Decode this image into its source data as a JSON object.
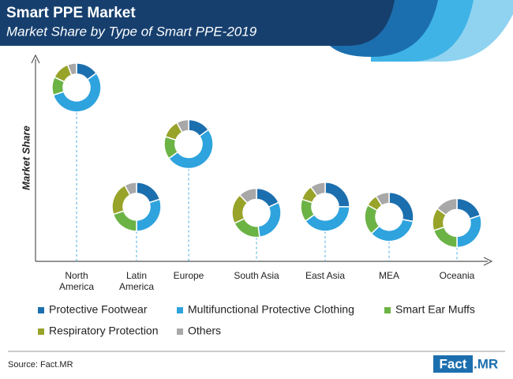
{
  "chart_data": {
    "type": "donut",
    "title": "Smart PPE Market",
    "subtitle": "Market Share by Type of Smart PPE-2019",
    "y_label": "Market Share",
    "categories": [
      "North\nAmerica",
      "Latin\nAmerica",
      "Europe",
      "South Asia",
      "East Asia",
      "MEA",
      "Oceania"
    ],
    "market_share": [
      86,
      27,
      58,
      24,
      27,
      22,
      19
    ],
    "ylim": [
      0,
      100
    ],
    "series": [
      {
        "name": "Protective Footwear",
        "color": "#1c6fae",
        "values": [
          15,
          20,
          15,
          18,
          25,
          28,
          20
        ]
      },
      {
        "name": "Multifunctional Protective Clothing",
        "color": "#2ea3dd",
        "values": [
          55,
          30,
          50,
          30,
          40,
          35,
          30
        ]
      },
      {
        "name": "Smart Ear Muffs",
        "color": "#6cb345",
        "values": [
          12,
          20,
          15,
          20,
          15,
          20,
          20
        ]
      },
      {
        "name": "Respiratory Protection",
        "color": "#98a32a",
        "values": [
          12,
          22,
          12,
          20,
          10,
          8,
          15
        ]
      },
      {
        "name": "Others",
        "color": "#a8a8a8",
        "values": [
          6,
          8,
          8,
          12,
          10,
          9,
          15
        ]
      }
    ],
    "source": "Source: Fact.MR",
    "logo": [
      "Fact",
      ".MR"
    ]
  }
}
